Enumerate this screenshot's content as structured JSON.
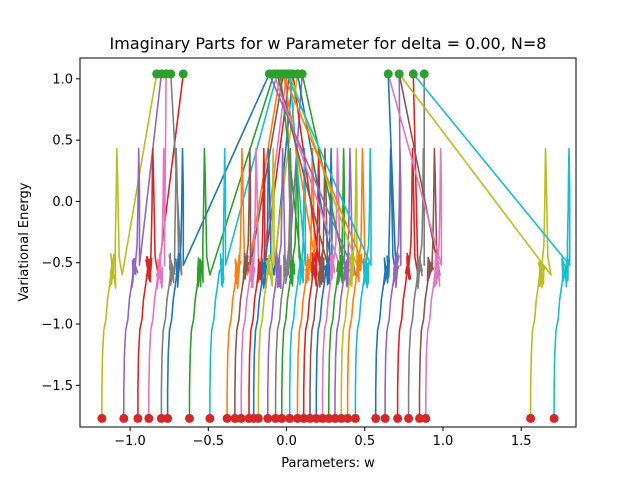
{
  "chart_data": {
    "type": "line",
    "title": "Imaginary Parts for w Parameter for delta = 0.00, N=8",
    "xlabel": "Parameters: w",
    "ylabel": "Variational Energy",
    "xlim": [
      -1.32,
      1.85
    ],
    "ylim": [
      -1.84,
      1.17
    ],
    "xticks": [
      -1.0,
      -0.5,
      0.0,
      0.5,
      1.0,
      1.5
    ],
    "xtick_labels": [
      "−1.0",
      "−0.5",
      "0.0",
      "0.5",
      "1.0",
      "1.5"
    ],
    "yticks": [
      -1.5,
      -1.0,
      -0.5,
      0.0,
      0.5,
      1.0
    ],
    "ytick_labels": [
      "−1.5",
      "−1.0",
      "−0.5",
      "0.0",
      "0.5",
      "1.0"
    ],
    "grid": false,
    "legend": "none",
    "colors": {
      "palette": [
        "#1f77b4",
        "#ff7f0e",
        "#2ca02c",
        "#d62728",
        "#9467bd",
        "#8c564b",
        "#e377c2",
        "#7f7f7f",
        "#bcbd22",
        "#17becf"
      ],
      "start_markers": "#d62728",
      "end_markers": "#2ca02c"
    },
    "start_marker_y": -1.77,
    "end_marker_y": 1.04,
    "start_points_x": [
      -1.18,
      -1.04,
      -0.95,
      -0.88,
      -0.8,
      -0.76,
      -0.62,
      -0.49,
      -0.38,
      -0.33,
      -0.29,
      -0.24,
      -0.21,
      -0.18,
      -0.12,
      -0.07,
      -0.03,
      0.02,
      0.07,
      0.11,
      0.15,
      0.19,
      0.23,
      0.27,
      0.31,
      0.35,
      0.39,
      0.44,
      0.57,
      0.63,
      0.71,
      0.78,
      0.85,
      0.89,
      1.56,
      1.71
    ],
    "end_points_x": [
      -0.83,
      -0.8,
      -0.77,
      -0.74,
      -0.66,
      -0.11,
      -0.08,
      -0.06,
      -0.04,
      -0.02,
      0.0,
      0.02,
      0.04,
      0.07,
      0.1,
      0.65,
      0.72,
      0.81,
      0.88
    ],
    "traces": [
      {
        "start": -1.18,
        "end": -0.83,
        "color_index": 8,
        "right_branch": true
      },
      {
        "start": -1.04,
        "end": -0.8,
        "color_index": 4,
        "right_branch": false
      },
      {
        "start": -0.95,
        "end": -0.66,
        "color_index": 3,
        "right_branch": true
      },
      {
        "start": -0.88,
        "end": -0.77,
        "color_index": 6,
        "right_branch": false
      },
      {
        "start": -0.8,
        "end": -0.74,
        "color_index": 7,
        "right_branch": true
      },
      {
        "start": -0.76,
        "end": -0.11,
        "color_index": 0,
        "right_branch": false
      },
      {
        "start": -0.62,
        "end": -0.08,
        "color_index": 2,
        "right_branch": true
      },
      {
        "start": -0.49,
        "end": -0.06,
        "color_index": 9,
        "right_branch": false
      },
      {
        "start": -0.38,
        "end": -0.04,
        "color_index": 1,
        "right_branch": true
      },
      {
        "start": -0.33,
        "end": -0.02,
        "color_index": 5,
        "right_branch": false
      },
      {
        "start": -0.29,
        "end": 0.0,
        "color_index": 6,
        "right_branch": true
      },
      {
        "start": -0.24,
        "end": 0.02,
        "color_index": 3,
        "right_branch": false
      },
      {
        "start": -0.21,
        "end": 0.04,
        "color_index": 0,
        "right_branch": true
      },
      {
        "start": -0.18,
        "end": 0.07,
        "color_index": 8,
        "right_branch": false
      },
      {
        "start": -0.12,
        "end": 0.1,
        "color_index": 4,
        "right_branch": true
      },
      {
        "start": -0.07,
        "end": 0.0,
        "color_index": 7,
        "right_branch": false
      },
      {
        "start": -0.03,
        "end": -0.04,
        "color_index": 2,
        "right_branch": true
      },
      {
        "start": 0.02,
        "end": 0.02,
        "color_index": 9,
        "right_branch": false
      },
      {
        "start": 0.07,
        "end": -0.02,
        "color_index": 1,
        "right_branch": true
      },
      {
        "start": 0.11,
        "end": 0.04,
        "color_index": 3,
        "right_branch": false
      },
      {
        "start": 0.15,
        "end": -0.06,
        "color_index": 5,
        "right_branch": true
      },
      {
        "start": 0.19,
        "end": 0.07,
        "color_index": 0,
        "right_branch": false
      },
      {
        "start": 0.23,
        "end": -0.08,
        "color_index": 6,
        "right_branch": true
      },
      {
        "start": 0.27,
        "end": 0.1,
        "color_index": 2,
        "right_branch": false
      },
      {
        "start": 0.31,
        "end": -0.11,
        "color_index": 4,
        "right_branch": true
      },
      {
        "start": 0.35,
        "end": 0.02,
        "color_index": 8,
        "right_branch": false
      },
      {
        "start": 0.39,
        "end": -0.02,
        "color_index": 1,
        "right_branch": true
      },
      {
        "start": 0.44,
        "end": 0.0,
        "color_index": 9,
        "right_branch": false
      },
      {
        "start": 0.57,
        "end": 0.65,
        "color_index": 0,
        "right_branch": true
      },
      {
        "start": 0.63,
        "end": 0.72,
        "color_index": 4,
        "right_branch": false
      },
      {
        "start": 0.71,
        "end": 0.81,
        "color_index": 3,
        "right_branch": true
      },
      {
        "start": 0.78,
        "end": 0.88,
        "color_index": 7,
        "right_branch": false
      },
      {
        "start": 0.85,
        "end": 0.72,
        "color_index": 5,
        "right_branch": true
      },
      {
        "start": 0.89,
        "end": 0.65,
        "color_index": 6,
        "right_branch": false
      },
      {
        "start": 1.56,
        "end": 0.72,
        "color_index": 8,
        "right_branch": true
      },
      {
        "start": 1.71,
        "end": 0.81,
        "color_index": 9,
        "right_branch": false
      }
    ]
  }
}
